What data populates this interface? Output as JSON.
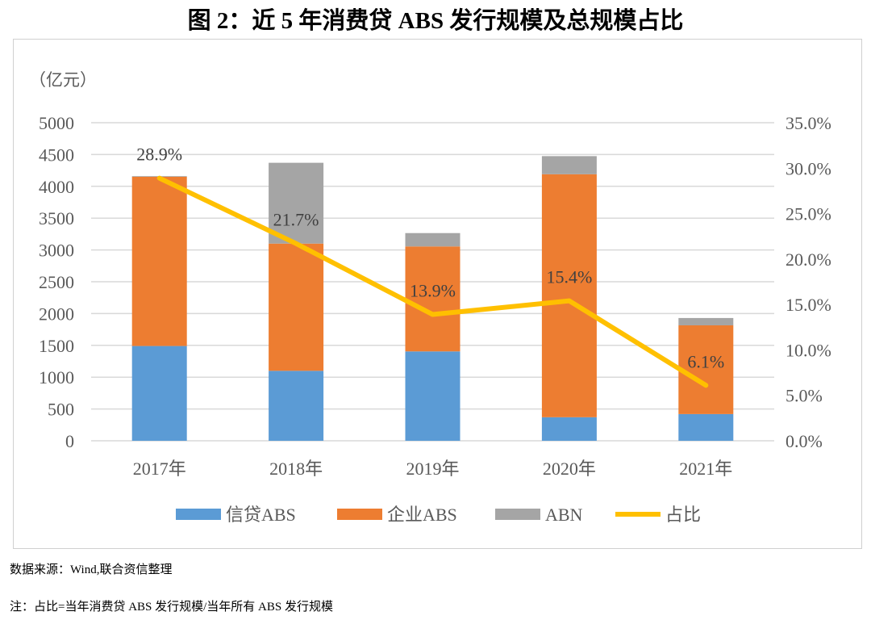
{
  "title": "图 2：近 5 年消费贷 ABS 发行规模及总规模占比",
  "source_note": "数据来源：Wind,联合资信整理",
  "footnote": "注：占比=当年消费贷 ABS 发行规模/当年所有 ABS 发行规模",
  "chart_data": {
    "type": "bar",
    "stacked": true,
    "categories": [
      "2017年",
      "2018年",
      "2019年",
      "2020年",
      "2021年"
    ],
    "ylabel": "（亿元）",
    "ylim": [
      0,
      5000
    ],
    "yticks": [
      "0",
      "500",
      "1000",
      "1500",
      "2000",
      "2500",
      "3000",
      "3500",
      "4000",
      "4500",
      "5000"
    ],
    "y2lim": [
      0,
      35
    ],
    "y2ticks": [
      "0.0%",
      "5.0%",
      "10.0%",
      "15.0%",
      "20.0%",
      "25.0%",
      "30.0%",
      "35.0%"
    ],
    "grid": true,
    "legend_position": "bottom",
    "series": [
      {
        "name": "信贷ABS",
        "type": "bar",
        "color": "#5b9bd5",
        "values": [
          1490,
          1100,
          1405,
          370,
          420
        ]
      },
      {
        "name": "企业ABS",
        "type": "bar",
        "color": "#ed7d31",
        "values": [
          2660,
          2000,
          1650,
          3820,
          1395
        ]
      },
      {
        "name": "ABN",
        "type": "bar",
        "color": "#a5a5a5",
        "values": [
          10,
          1270,
          210,
          285,
          115
        ]
      },
      {
        "name": "占比",
        "type": "line",
        "axis": "right",
        "color": "#ffc000",
        "values": [
          28.9,
          21.7,
          13.9,
          15.4,
          6.1
        ],
        "labels": [
          "28.9%",
          "21.7%",
          "13.9%",
          "15.4%",
          "6.1%"
        ]
      }
    ]
  }
}
